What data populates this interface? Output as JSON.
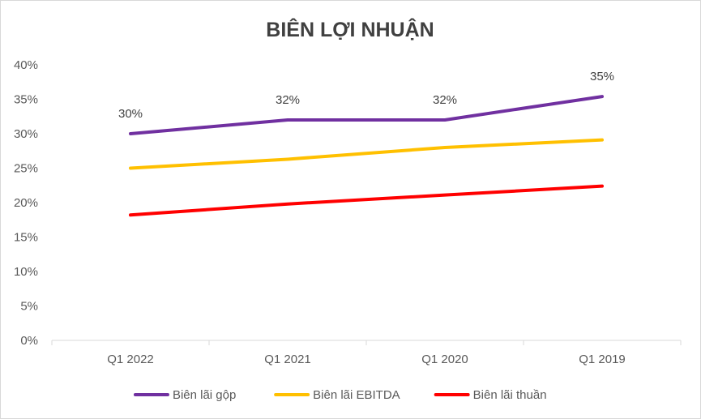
{
  "chart_data": {
    "type": "line",
    "title": "BIÊN LỢI NHUẬN",
    "categories": [
      "Q1 2022",
      "Q1 2021",
      "Q1 2020",
      "Q1 2019"
    ],
    "y_ticks": [
      "0%",
      "5%",
      "10%",
      "15%",
      "20%",
      "25%",
      "30%",
      "35%",
      "40%"
    ],
    "ylim": [
      0,
      40
    ],
    "y_unit": "%",
    "grid": false,
    "legend_position": "bottom",
    "series": [
      {
        "name": "Biên lãi gộp",
        "color": "#7030a0",
        "values": [
          30,
          32,
          32,
          35.4
        ],
        "data_labels": [
          "30%",
          "32%",
          "32%",
          "35%"
        ]
      },
      {
        "name": "Biên lãi EBITDA",
        "color": "#ffc000",
        "values": [
          25,
          26.3,
          28,
          29.1
        ]
      },
      {
        "name": "Biên lãi thuần",
        "color": "#ff0000",
        "values": [
          18.2,
          19.8,
          21.1,
          22.4
        ]
      }
    ]
  }
}
